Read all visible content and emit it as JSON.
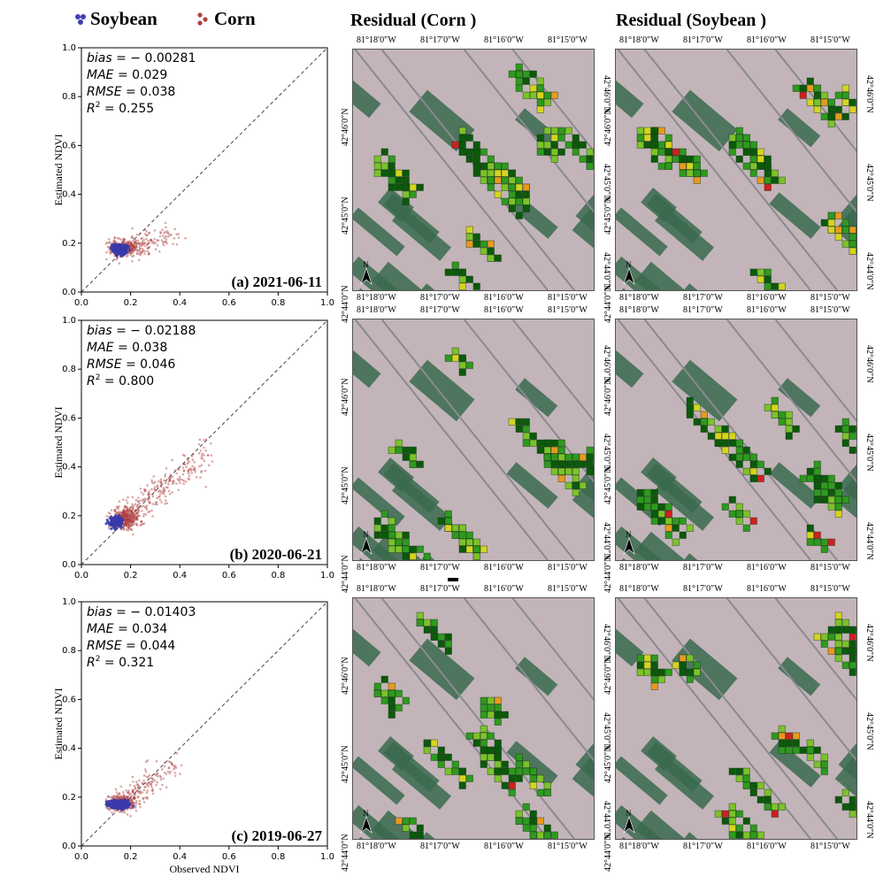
{
  "legend": [
    {
      "label": "Soybean",
      "color": "#4040b0"
    },
    {
      "label": "Corn",
      "color": "#b04040"
    }
  ],
  "chart_data": [
    {
      "type": "scatter",
      "panel_label": "(a) 2021-06-11",
      "xlabel": "",
      "ylabel": "Estimated NDVI",
      "xlim": [
        0,
        1.0
      ],
      "ylim": [
        0,
        1.0
      ],
      "xticks": [
        "0.0",
        "0.2",
        "0.4",
        "0.6",
        "0.8",
        "1.0"
      ],
      "yticks": [
        "0.0",
        "0.2",
        "0.4",
        "0.6",
        "0.8",
        "1.0"
      ],
      "stats": [
        {
          "name": "bias",
          "value": "− 0.00281"
        },
        {
          "name": "MAE",
          "value": "0.029"
        },
        {
          "name": "RMSE",
          "value": "0.038"
        },
        {
          "name": "R²",
          "value": "0.255"
        }
      ],
      "series": [
        {
          "name": "Corn",
          "color": "#b04040",
          "center": [
            0.17,
            0.18
          ],
          "spread": [
            0.035,
            0.018
          ],
          "tail_to": [
            0.38,
            0.23
          ],
          "count": 380
        },
        {
          "name": "Soybean",
          "color": "#3a3aaa",
          "center": [
            0.155,
            0.175
          ],
          "spread": [
            0.014,
            0.01
          ],
          "count": 260
        }
      ]
    },
    {
      "type": "scatter",
      "panel_label": "(b) 2020-06-21",
      "xlabel": "",
      "ylabel": "Estimated NDVI",
      "xlim": [
        0,
        1.0
      ],
      "ylim": [
        0,
        1.0
      ],
      "xticks": [
        "0.0",
        "0.2",
        "0.4",
        "0.6",
        "0.8",
        "1.0"
      ],
      "yticks": [
        "0.0",
        "0.2",
        "0.4",
        "0.6",
        "0.8",
        "1.0"
      ],
      "stats": [
        {
          "name": "bias",
          "value": "− 0.02188"
        },
        {
          "name": "MAE",
          "value": "0.038"
        },
        {
          "name": "RMSE",
          "value": "0.046"
        },
        {
          "name": "R²",
          "value": "0.800"
        }
      ],
      "series": [
        {
          "name": "Corn",
          "color": "#b04040",
          "center": [
            0.18,
            0.19
          ],
          "spread": [
            0.03,
            0.02
          ],
          "tail_to": [
            0.52,
            0.47
          ],
          "count": 600
        },
        {
          "name": "Soybean",
          "color": "#3a3aaa",
          "center": [
            0.14,
            0.175
          ],
          "spread": [
            0.013,
            0.01
          ],
          "count": 260
        }
      ]
    },
    {
      "type": "scatter",
      "panel_label": "(c) 2019-06-27",
      "xlabel": "Observed NDVI",
      "ylabel": "Estimated NDVI",
      "xlim": [
        0,
        1.0
      ],
      "ylim": [
        0,
        1.0
      ],
      "xticks": [
        "0.0",
        "0.2",
        "0.4",
        "0.6",
        "0.8",
        "1.0"
      ],
      "yticks": [
        "0.0",
        "0.2",
        "0.4",
        "0.6",
        "0.8",
        "1.0"
      ],
      "stats": [
        {
          "name": "bias",
          "value": "− 0.01403"
        },
        {
          "name": "MAE",
          "value": "0.034"
        },
        {
          "name": "RMSE",
          "value": "0.044"
        },
        {
          "name": "R²",
          "value": "0.321"
        }
      ],
      "series": [
        {
          "name": "Corn",
          "color": "#b04040",
          "center": [
            0.16,
            0.175
          ],
          "spread": [
            0.03,
            0.015
          ],
          "tail_to": [
            0.38,
            0.34
          ],
          "count": 420
        },
        {
          "name": "Soybean",
          "color": "#3a3aaa",
          "center": [
            0.15,
            0.17
          ],
          "spread": [
            0.02,
            0.008
          ],
          "count": 300
        }
      ]
    }
  ],
  "maps": {
    "column_titles": [
      "Residual (Corn )",
      "Residual (Soybean )"
    ],
    "lon_labels": [
      "81°18′0″W",
      "81°17′0″W",
      "81°16′0″W",
      "81°15′0″W"
    ],
    "lat_labels": [
      "42°46′0″N",
      "42°45′0″N",
      "42°44′0″N"
    ],
    "north_label": "N",
    "residual_colors": [
      "#0a5a0a",
      "#2e9a1e",
      "#7cc22a",
      "#d4d420",
      "#e89a20",
      "#d02020"
    ],
    "background_colors": {
      "bare": "#c2b4b8",
      "veg": "#3a6a4e",
      "road": "#8a8a90"
    }
  }
}
